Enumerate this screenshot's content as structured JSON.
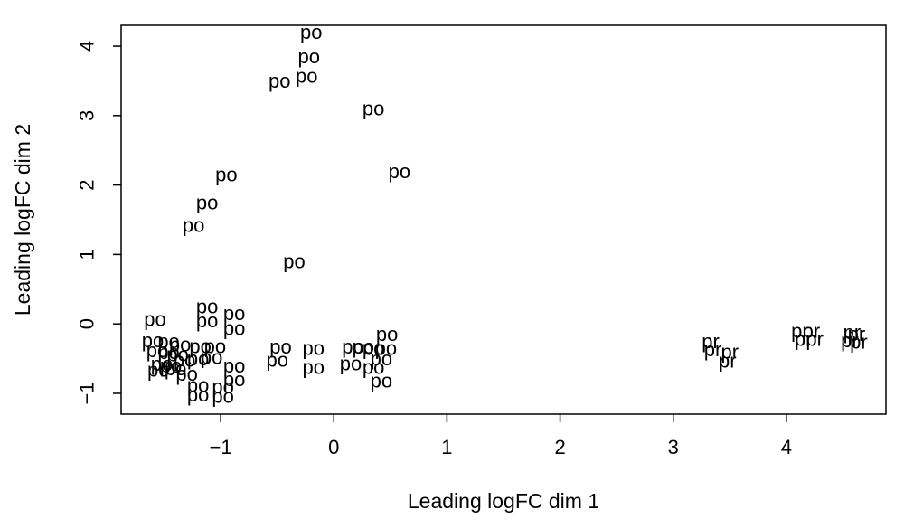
{
  "chart_data": {
    "type": "scatter",
    "marker": "text",
    "xlabel": "Leading logFC dim 1",
    "ylabel": "Leading logFC dim 2",
    "xlim": [
      -1.88,
      4.88
    ],
    "ylim": [
      -1.3,
      4.3
    ],
    "xticks": [
      -1,
      0,
      1,
      2,
      3,
      4
    ],
    "yticks": [
      -1,
      0,
      1,
      2,
      3,
      4
    ],
    "xtick_labels": [
      "−1",
      "0",
      "1",
      "2",
      "3",
      "4"
    ],
    "ytick_labels": [
      "−1",
      "0",
      "1",
      "2",
      "3",
      "4"
    ],
    "grid": false,
    "points": [
      {
        "x": -0.2,
        "y": 4.2,
        "label": "po"
      },
      {
        "x": -0.22,
        "y": 3.85,
        "label": "po"
      },
      {
        "x": -0.48,
        "y": 3.5,
        "label": "po"
      },
      {
        "x": -0.24,
        "y": 3.57,
        "label": "po"
      },
      {
        "x": 0.35,
        "y": 3.1,
        "label": "po"
      },
      {
        "x": -0.95,
        "y": 2.15,
        "label": "po"
      },
      {
        "x": 0.58,
        "y": 2.2,
        "label": "po"
      },
      {
        "x": -1.12,
        "y": 1.75,
        "label": "po"
      },
      {
        "x": -1.24,
        "y": 1.42,
        "label": "po"
      },
      {
        "x": -0.35,
        "y": 0.9,
        "label": "po"
      },
      {
        "x": -1.12,
        "y": 0.25,
        "label": "po"
      },
      {
        "x": -0.88,
        "y": 0.15,
        "label": "po"
      },
      {
        "x": -1.58,
        "y": 0.07,
        "label": "po"
      },
      {
        "x": -1.12,
        "y": 0.05,
        "label": "po"
      },
      {
        "x": -0.88,
        "y": -0.06,
        "label": "po"
      },
      {
        "x": -1.6,
        "y": -0.24,
        "label": "po"
      },
      {
        "x": -1.46,
        "y": -0.25,
        "label": "po"
      },
      {
        "x": -1.36,
        "y": -0.3,
        "label": "po"
      },
      {
        "x": -1.56,
        "y": -0.38,
        "label": "po"
      },
      {
        "x": -1.46,
        "y": -0.41,
        "label": "po"
      },
      {
        "x": -1.38,
        "y": -0.44,
        "label": "po"
      },
      {
        "x": -1.18,
        "y": -0.32,
        "label": "po"
      },
      {
        "x": -1.05,
        "y": -0.32,
        "label": "po"
      },
      {
        "x": -1.52,
        "y": -0.58,
        "label": "po"
      },
      {
        "x": -1.44,
        "y": -0.6,
        "label": "po"
      },
      {
        "x": -1.32,
        "y": -0.52,
        "label": "po"
      },
      {
        "x": -1.2,
        "y": -0.5,
        "label": "po"
      },
      {
        "x": -1.08,
        "y": -0.48,
        "label": "po"
      },
      {
        "x": -1.55,
        "y": -0.66,
        "label": "po"
      },
      {
        "x": -1.4,
        "y": -0.64,
        "label": "po"
      },
      {
        "x": -1.3,
        "y": -0.72,
        "label": "po"
      },
      {
        "x": -0.88,
        "y": -0.6,
        "label": "po"
      },
      {
        "x": -0.88,
        "y": -0.8,
        "label": "po"
      },
      {
        "x": -1.2,
        "y": -0.88,
        "label": "po"
      },
      {
        "x": -0.98,
        "y": -0.9,
        "label": "po"
      },
      {
        "x": -1.2,
        "y": -1.02,
        "label": "po"
      },
      {
        "x": -0.98,
        "y": -1.04,
        "label": "po"
      },
      {
        "x": -0.47,
        "y": -0.33,
        "label": "po"
      },
      {
        "x": -0.5,
        "y": -0.52,
        "label": "po"
      },
      {
        "x": -0.18,
        "y": -0.35,
        "label": "po"
      },
      {
        "x": -0.18,
        "y": -0.62,
        "label": "po"
      },
      {
        "x": 0.17,
        "y": -0.33,
        "label": "po"
      },
      {
        "x": 0.26,
        "y": -0.33,
        "label": "po"
      },
      {
        "x": 0.35,
        "y": -0.35,
        "label": "po"
      },
      {
        "x": 0.46,
        "y": -0.35,
        "label": "po"
      },
      {
        "x": 0.47,
        "y": -0.15,
        "label": "po"
      },
      {
        "x": 0.15,
        "y": -0.57,
        "label": "po"
      },
      {
        "x": 0.35,
        "y": -0.62,
        "label": "po"
      },
      {
        "x": 0.42,
        "y": -0.5,
        "label": "po"
      },
      {
        "x": 0.42,
        "y": -0.82,
        "label": "po"
      },
      {
        "x": 3.33,
        "y": -0.25,
        "label": "pr"
      },
      {
        "x": 3.35,
        "y": -0.37,
        "label": "pr"
      },
      {
        "x": 3.5,
        "y": -0.4,
        "label": "pr"
      },
      {
        "x": 3.48,
        "y": -0.53,
        "label": "pr"
      },
      {
        "x": 4.12,
        "y": -0.1,
        "label": "pr"
      },
      {
        "x": 4.22,
        "y": -0.1,
        "label": "pr"
      },
      {
        "x": 4.15,
        "y": -0.22,
        "label": "pr"
      },
      {
        "x": 4.25,
        "y": -0.22,
        "label": "pr"
      },
      {
        "x": 4.58,
        "y": -0.12,
        "label": "pr"
      },
      {
        "x": 4.62,
        "y": -0.15,
        "label": "pr"
      },
      {
        "x": 4.56,
        "y": -0.24,
        "label": "pr"
      },
      {
        "x": 4.64,
        "y": -0.26,
        "label": "pr"
      }
    ]
  }
}
